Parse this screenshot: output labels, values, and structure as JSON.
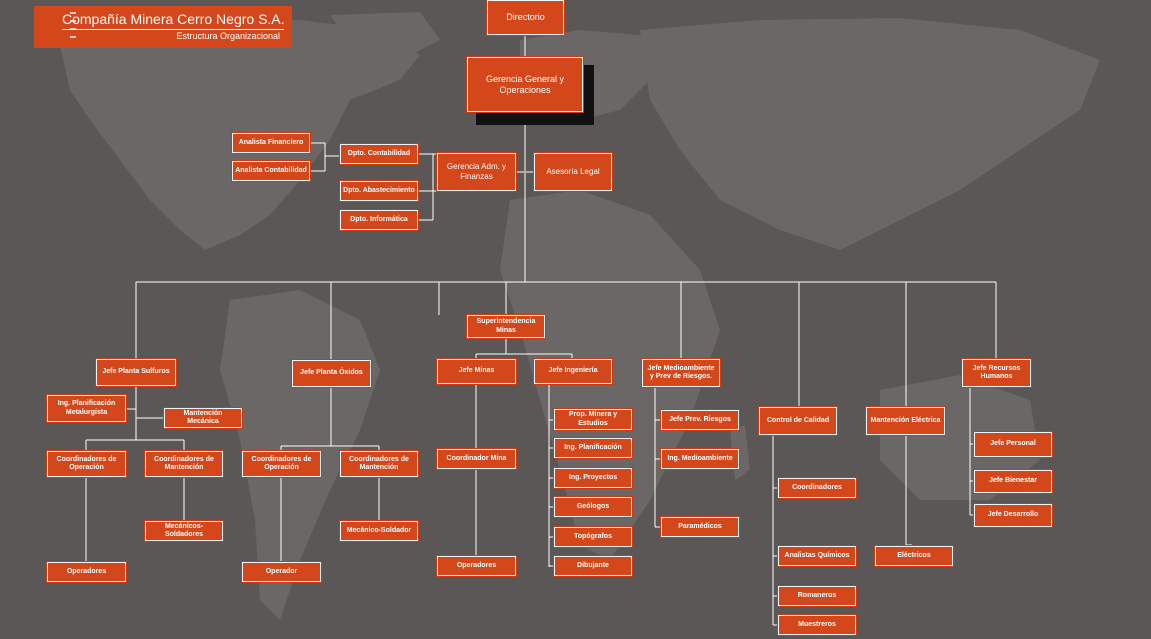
{
  "header": {
    "title": "Compañía Minera Cerro Negro S.A.",
    "subtitle": "Estructura Organizacional"
  },
  "colors": {
    "background": "#5b5756",
    "continents": "#6b6766",
    "box_fill": "#d4471a",
    "box_border": "#f2f2f2",
    "connector": "#ffffff",
    "shadow": "#111111"
  },
  "nodes": {
    "directorio": "Directorio",
    "gerencia_general": "Gerencia General y Operaciones",
    "gerencia_adm": "Gerencia Adm. y Finanzas",
    "asesoria_legal": "Asesoría Legal",
    "analista_financiero": "Analista Financiero",
    "analista_contabilidad": "Analista Contabilidad",
    "dpto_contabilidad": "Dpto. Contabilidad",
    "dpto_abastecimiento": "Dpto. Abastecimiento",
    "dpto_informatica": "Dpto. Informática",
    "superintendencia_minas": "Superintendencia Minas",
    "jefe_planta_sulfuros": "Jefe Planta Sulfuros",
    "ing_planificacion_metalurgista": "Ing. Planificación Metalurgista",
    "mantencion_mecanica": "Mantención Mecánica",
    "coord_operacion_1": "Coordinadores de Operación",
    "coord_mantencion_1": "Coordinadores de Mantención",
    "mecanicos_soldadores": "Mecánicos- Soldadores",
    "operadores_1": "Operadores",
    "jefe_planta_oxidos": "Jefe Planta Óxidos",
    "coord_operacion_2": "Coordinadores de Operación",
    "coord_mantencion_2": "Coordinadores de Mantención",
    "mecanico_soldador": "Mecánico-Soldador",
    "operador": "Operador",
    "jefe_minas": "Jefe Minas",
    "coordinador_mina": "Coordinador Mina",
    "operadores_2": "Operadores",
    "jefe_ingenieria": "Jefe Ingeniería",
    "prop_minera": "Prop. Minera y Estudios",
    "ing_planificacion": "Ing. Planificación",
    "ing_proyectos": "Ing. Proyectos",
    "geologos": "Geólogos",
    "topografos": "Topógrafos",
    "dibujante": "Dibujante",
    "jefe_medioambiente": "Jefe Medioambiente y Prev de Riesgos.",
    "jefe_prev_riesgos": "Jefe Prev. Riesgos",
    "ing_medioambiente": "Ing. Medioambiente",
    "paramedicos": "Paramédicos",
    "control_calidad": "Control de Calidad",
    "coordinadores": "Coordinadores",
    "analistas_quimicos": "Analistas Químicos",
    "romaneros": "Romaneros",
    "muestreros": "Muestreros",
    "mantencion_electrica": "Mantención Eléctrica",
    "electricos": "Eléctricos",
    "jefe_rrhh": "Jefe Recursos Humanos",
    "jefe_personal": "Jefe Personal",
    "jefe_bienestar": "Jefe Bienestar",
    "jefe_desarrollo": "Jefe Desarrollo"
  }
}
